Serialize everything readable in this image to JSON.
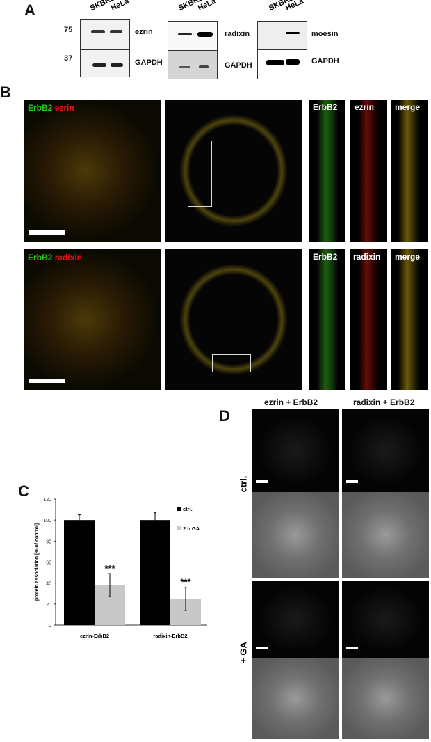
{
  "panels": {
    "a": "A",
    "b": "B",
    "c": "C",
    "d": "D"
  },
  "panel_a": {
    "lanes": [
      "SKBR3",
      "HeLa"
    ],
    "markers": [
      "75",
      "37"
    ],
    "blots": [
      {
        "top": "ezrin",
        "bottom": "GAPDH"
      },
      {
        "top": "radixin",
        "bottom": "GAPDH"
      },
      {
        "top": "moesin",
        "bottom": "GAPDH"
      }
    ]
  },
  "panel_b": {
    "row1": {
      "title_green": "ErbB2",
      "title_red": "ezrin",
      "strips": [
        "ErbB2",
        "ezrin",
        "merge"
      ]
    },
    "row2": {
      "title_green": "ErbB2",
      "title_red": "radixin",
      "strips": [
        "ErbB2",
        "radixin",
        "merge"
      ]
    },
    "colors": {
      "green": "#22cc22",
      "red": "#ee1111",
      "yellow": "#dddd22"
    }
  },
  "panel_d": {
    "columns": [
      "ezrin + ErbB2",
      "radixin + ErbB2"
    ],
    "rows": [
      "ctrl.",
      "+ GA"
    ]
  },
  "chart_data": {
    "type": "bar",
    "categories": [
      "ezrin-ErbB2",
      "radixin-ErbB2"
    ],
    "series": [
      {
        "name": "ctrl.",
        "values": [
          100,
          100
        ],
        "errors": [
          5,
          7
        ],
        "color": "#000000"
      },
      {
        "name": "2 h GA",
        "values": [
          38,
          25
        ],
        "errors": [
          11,
          11
        ],
        "color": "#c8c8c8"
      }
    ],
    "annotations": [
      "***",
      "***"
    ],
    "ylabel": "protein association [% of control]",
    "ylim": [
      0,
      120
    ],
    "yticks": [
      "0",
      "20",
      "40",
      "60",
      "80",
      "100",
      "120"
    ],
    "legend": "top-right",
    "grid": false
  }
}
